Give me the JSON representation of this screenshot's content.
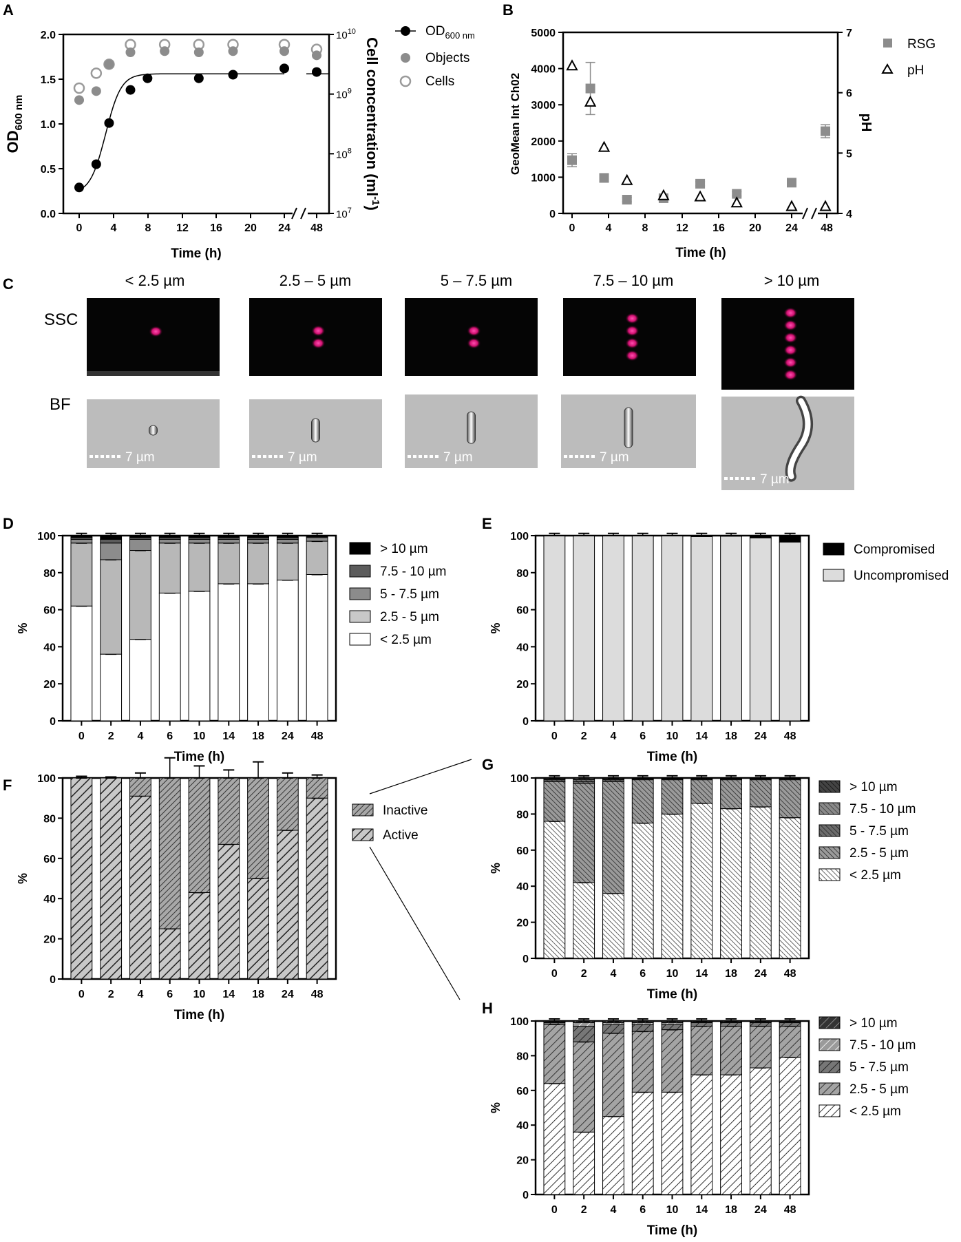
{
  "colors": {
    "black": "#000000",
    "gray": "#8c8c8c",
    "lightgray": "#bdbdbd",
    "dark": "#5a5a5a",
    "mid": "#9a9a9a",
    "light": "#d0d0d0",
    "magenta": "#e0187a"
  },
  "panels": {
    "A": {
      "letter": "A"
    },
    "B": {
      "letter": "B"
    },
    "C": {
      "letter": "C"
    },
    "D": {
      "letter": "D"
    },
    "E": {
      "letter": "E"
    },
    "F": {
      "letter": "F"
    },
    "G": {
      "letter": "G"
    },
    "H": {
      "letter": "H"
    }
  },
  "panel_c": {
    "size_labels": [
      "< 2.5 µm",
      "2.5 – 5 µm",
      "5 – 7.5 µm",
      "7.5 – 10 µm",
      "> 10 µm"
    ],
    "row_labels": [
      "SSC",
      "BF"
    ],
    "scale_label": "7 µm",
    "spot_counts": [
      1,
      2,
      2,
      4,
      6
    ]
  },
  "chart_data": [
    {
      "id": "A",
      "type": "scatter",
      "xlabel": "Time (h)",
      "ylabel_main": "OD",
      "ylabel_sub": "600 nm",
      "y2label": "Cell concentration (ml",
      "y2label_sup": "-1",
      "y2label_end": ")",
      "x_ticks": [
        "0",
        "4",
        "8",
        "12",
        "16",
        "20",
        "24",
        "48"
      ],
      "y_ticks": [
        "0.0",
        "0.5",
        "1.0",
        "1.5",
        "2.0"
      ],
      "y2_ticks": [
        {
          "base": "10",
          "exp": "7"
        },
        {
          "base": "10",
          "exp": "8"
        },
        {
          "base": "10",
          "exp": "9"
        },
        {
          "base": "10",
          "exp": "10"
        }
      ],
      "ylim": [
        0,
        2.0
      ],
      "y2lim_log10": [
        7,
        10
      ],
      "legend": [
        {
          "name": "OD",
          "sub": "600 nm"
        },
        {
          "name": "Objects"
        },
        {
          "name": "Cells"
        }
      ],
      "series": [
        {
          "name": "OD600 nm",
          "x": [
            0,
            2,
            3.5,
            6,
            8,
            14,
            18,
            24,
            48
          ],
          "values": [
            0.29,
            0.55,
            1.01,
            1.38,
            1.51,
            1.51,
            1.55,
            1.62,
            1.58
          ]
        },
        {
          "name": "Objects",
          "x": [
            0,
            2,
            3.5,
            6,
            10,
            14,
            18,
            24,
            48
          ],
          "values_log10": [
            8.9,
            9.05,
            9.5,
            9.7,
            9.72,
            9.7,
            9.72,
            9.72,
            9.65
          ]
        },
        {
          "name": "Cells",
          "x": [
            0,
            2,
            3.5,
            6,
            10,
            14,
            18,
            24,
            48
          ],
          "values_log10": [
            9.1,
            9.35,
            9.5,
            9.83,
            9.83,
            9.83,
            9.83,
            9.83,
            9.75
          ]
        }
      ]
    },
    {
      "id": "B",
      "type": "scatter",
      "xlabel": "Time (h)",
      "ylabel": "GeoMean Int Ch02",
      "y2label": "pH",
      "x_ticks": [
        "0",
        "4",
        "8",
        "12",
        "16",
        "20",
        "24",
        "48"
      ],
      "y_ticks": [
        "0",
        "1000",
        "2000",
        "3000",
        "4000",
        "5000"
      ],
      "y2_ticks": [
        "4",
        "5",
        "6",
        "7"
      ],
      "ylim": [
        0,
        5000
      ],
      "y2lim": [
        4,
        7
      ],
      "legend": [
        {
          "name": "RSG"
        },
        {
          "name": "pH"
        }
      ],
      "series": [
        {
          "name": "RSG",
          "x": [
            0,
            2,
            3.5,
            6,
            10,
            14,
            18,
            24,
            48
          ],
          "values": [
            1470,
            3450,
            980,
            380,
            420,
            820,
            540,
            850,
            2270
          ],
          "err": [
            180,
            720,
            100,
            60,
            60,
            60,
            60,
            60,
            180
          ]
        },
        {
          "name": "pH",
          "x": [
            0,
            2,
            3.5,
            6,
            10,
            14,
            18,
            24,
            48
          ],
          "values": [
            6.45,
            5.85,
            5.1,
            4.55,
            4.3,
            4.28,
            4.18,
            4.12,
            4.12
          ]
        }
      ]
    },
    {
      "id": "D",
      "type": "bar",
      "stacked": true,
      "xlabel": "Time (h)",
      "ylabel": "%",
      "ylim": [
        0,
        100
      ],
      "y_ticks": [
        "0",
        "20",
        "40",
        "60",
        "80",
        "100"
      ],
      "categories": [
        "0",
        "2",
        "4",
        "6",
        "10",
        "14",
        "18",
        "24",
        "48"
      ],
      "legend": [
        "> 10 µm",
        "7.5 - 10 µm",
        "5 - 7.5 µm",
        "2.5 - 5 µm",
        "<  2.5 µm"
      ],
      "series": [
        {
          "name": "< 2.5 µm",
          "values": [
            62,
            36,
            44,
            69,
            70,
            74,
            74,
            76,
            79
          ]
        },
        {
          "name": "2.5 - 5 µm",
          "values": [
            34,
            51,
            48,
            27,
            26,
            22,
            22,
            20,
            18
          ]
        },
        {
          "name": "5 - 7.5 µm",
          "values": [
            2,
            9,
            6,
            2,
            2,
            2,
            2,
            2,
            2
          ]
        },
        {
          "name": "7.5 - 10 µm",
          "values": [
            1,
            2,
            1,
            1,
            1,
            1,
            1,
            1,
            0.5
          ]
        },
        {
          "name": "> 10 µm",
          "values": [
            1,
            2,
            1,
            1,
            1,
            1,
            1,
            1,
            0.5
          ]
        }
      ]
    },
    {
      "id": "E",
      "type": "bar",
      "stacked": true,
      "xlabel": "Time (h)",
      "ylabel": "%",
      "ylim": [
        0,
        100
      ],
      "y_ticks": [
        "0",
        "20",
        "40",
        "60",
        "80",
        "100"
      ],
      "categories": [
        "0",
        "2",
        "4",
        "6",
        "10",
        "14",
        "18",
        "24",
        "48"
      ],
      "legend": [
        "Compromised",
        "Uncompromised"
      ],
      "series": [
        {
          "name": "Uncompromised",
          "values": [
            99.8,
            99.8,
            99.8,
            99.8,
            99.8,
            99.5,
            99.7,
            98.8,
            96.5
          ]
        },
        {
          "name": "Compromised",
          "values": [
            0.2,
            0.2,
            0.2,
            0.2,
            0.2,
            0.5,
            0.3,
            1.2,
            3.5
          ]
        }
      ]
    },
    {
      "id": "F",
      "type": "bar",
      "stacked": true,
      "xlabel": "Time (h)",
      "ylabel": "%",
      "ylim": [
        0,
        100
      ],
      "y_ticks": [
        "0",
        "20",
        "40",
        "60",
        "80",
        "100"
      ],
      "categories": [
        "0",
        "2",
        "4",
        "6",
        "10",
        "14",
        "18",
        "24",
        "48"
      ],
      "legend": [
        "Inactive",
        "Active"
      ],
      "series": [
        {
          "name": "Active",
          "values": [
            100,
            100,
            91,
            25,
            43,
            67,
            50,
            74,
            90
          ]
        },
        {
          "name": "Inactive",
          "values": [
            0,
            0,
            9,
            75,
            57,
            33,
            50,
            26,
            10
          ]
        }
      ]
    },
    {
      "id": "G",
      "type": "bar",
      "stacked": true,
      "xlabel": "Time (h)",
      "ylabel": "%",
      "ylim": [
        0,
        100
      ],
      "y_ticks": [
        "0",
        "20",
        "40",
        "60",
        "80",
        "100"
      ],
      "categories": [
        "0",
        "2",
        "4",
        "6",
        "10",
        "14",
        "18",
        "24",
        "48"
      ],
      "legend": [
        "> 10 µm",
        "7.5 - 10 µm",
        "5 - 7.5 µm",
        "2.5 - 5 µm",
        "<  2.5 µm"
      ],
      "series": [
        {
          "name": "< 2.5 µm",
          "values": [
            76,
            42,
            36,
            75,
            80,
            86,
            83,
            84,
            78
          ]
        },
        {
          "name": "2.5 - 5 µm",
          "values": [
            22,
            55,
            62,
            24,
            19,
            13,
            16,
            15,
            21
          ]
        },
        {
          "name": "5 - 7.5 µm",
          "values": [
            1,
            1,
            1,
            0.5,
            0.5,
            0.5,
            0.5,
            0.5,
            0.5
          ]
        },
        {
          "name": "7.5 - 10 µm",
          "values": [
            0.5,
            1,
            0.5,
            0.3,
            0.3,
            0.3,
            0.3,
            0.3,
            0.3
          ]
        },
        {
          "name": "> 10 µm",
          "values": [
            0.5,
            1,
            0.5,
            0.2,
            0.2,
            0.2,
            0.2,
            0.2,
            0.2
          ]
        }
      ]
    },
    {
      "id": "H",
      "type": "bar",
      "stacked": true,
      "xlabel": "Time (h)",
      "ylabel": "%",
      "ylim": [
        0,
        100
      ],
      "y_ticks": [
        "0",
        "20",
        "40",
        "60",
        "80",
        "100"
      ],
      "categories": [
        "0",
        "2",
        "4",
        "6",
        "10",
        "14",
        "18",
        "24",
        "48"
      ],
      "legend": [
        "> 10 µm",
        "7.5 - 10 µm",
        "5 - 7.5 µm",
        "2.5 - 5 µm",
        "<  2.5 µm"
      ],
      "series": [
        {
          "name": "< 2.5 µm",
          "values": [
            64,
            36,
            45,
            59,
            59,
            69,
            69,
            73,
            79
          ]
        },
        {
          "name": "2.5 - 5 µm",
          "values": [
            34,
            52,
            48,
            35,
            36,
            28,
            28,
            24,
            18
          ]
        },
        {
          "name": "5 - 7.5 µm",
          "values": [
            1,
            9,
            5,
            4,
            3,
            2,
            2,
            2,
            2
          ]
        },
        {
          "name": "7.5 - 10 µm",
          "values": [
            0.5,
            2,
            1,
            1,
            1,
            0.5,
            0.5,
            0.5,
            0.5
          ]
        },
        {
          "name": "> 10 µm",
          "values": [
            0.5,
            1,
            1,
            1,
            1,
            0.5,
            0.5,
            0.5,
            0.5
          ]
        }
      ]
    }
  ]
}
